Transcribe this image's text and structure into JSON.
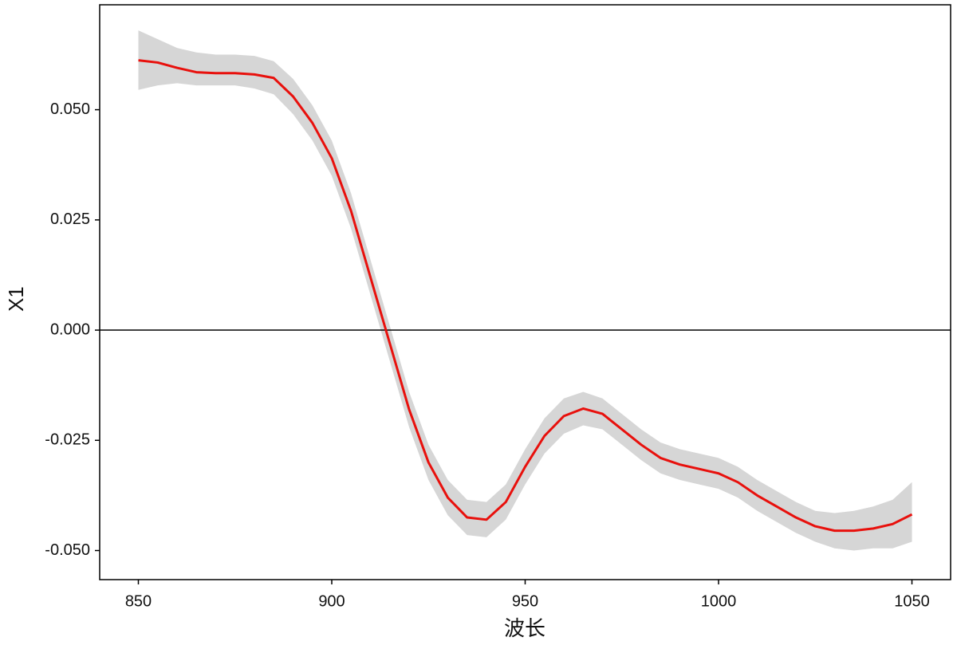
{
  "chart_data": {
    "type": "line",
    "x_label": "波长",
    "y_label": "X1",
    "x": [
      850,
      855,
      860,
      865,
      870,
      875,
      880,
      885,
      890,
      895,
      900,
      905,
      910,
      915,
      920,
      925,
      930,
      935,
      940,
      945,
      950,
      955,
      960,
      965,
      970,
      975,
      980,
      985,
      990,
      995,
      1000,
      1005,
      1010,
      1015,
      1020,
      1025,
      1030,
      1035,
      1040,
      1045,
      1050
    ],
    "values": [
      0.0612,
      0.0607,
      0.0595,
      0.0585,
      0.0583,
      0.0583,
      0.058,
      0.0572,
      0.053,
      0.047,
      0.039,
      0.027,
      0.012,
      -0.003,
      -0.018,
      -0.03,
      -0.038,
      -0.0425,
      -0.043,
      -0.039,
      -0.031,
      -0.024,
      -0.0195,
      -0.0178,
      -0.019,
      -0.0225,
      -0.026,
      -0.029,
      -0.0305,
      -0.0315,
      -0.0325,
      -0.0345,
      -0.0375,
      -0.04,
      -0.0425,
      -0.0445,
      -0.0455,
      -0.0455,
      -0.045,
      -0.044,
      -0.0418
    ],
    "upper": [
      0.068,
      0.066,
      0.064,
      0.063,
      0.0625,
      0.0625,
      0.0622,
      0.061,
      0.057,
      0.051,
      0.043,
      0.031,
      0.016,
      0.001,
      -0.014,
      -0.026,
      -0.034,
      -0.0385,
      -0.039,
      -0.035,
      -0.027,
      -0.02,
      -0.0155,
      -0.014,
      -0.0155,
      -0.019,
      -0.0225,
      -0.0255,
      -0.027,
      -0.028,
      -0.029,
      -0.031,
      -0.034,
      -0.0365,
      -0.039,
      -0.041,
      -0.0415,
      -0.041,
      -0.04,
      -0.0385,
      -0.0345
    ],
    "lower": [
      0.0545,
      0.0555,
      0.056,
      0.0555,
      0.0555,
      0.0555,
      0.0548,
      0.0535,
      0.049,
      0.043,
      0.035,
      0.023,
      0.008,
      -0.007,
      -0.022,
      -0.034,
      -0.042,
      -0.0465,
      -0.047,
      -0.043,
      -0.035,
      -0.028,
      -0.0235,
      -0.0216,
      -0.0225,
      -0.026,
      -0.0295,
      -0.0325,
      -0.034,
      -0.035,
      -0.036,
      -0.038,
      -0.041,
      -0.0435,
      -0.046,
      -0.048,
      -0.0495,
      -0.05,
      -0.0495,
      -0.0495,
      -0.048
    ],
    "color": "#e8100c",
    "band_color": "#d6d6d6",
    "reference_line": 0,
    "xlim": [
      840,
      1060
    ],
    "xticks": [
      850,
      900,
      950,
      1000,
      1050
    ],
    "ylim": [
      -0.0566,
      0.0738
    ],
    "yticks": [
      {
        "value": -0.05,
        "label": "-0.050"
      },
      {
        "value": -0.025,
        "label": "-0.025"
      },
      {
        "value": 0,
        "label": "0.000"
      },
      {
        "value": 0.025,
        "label": "0.025"
      },
      {
        "value": 0.05,
        "label": "0.050"
      }
    ],
    "grid": false
  }
}
